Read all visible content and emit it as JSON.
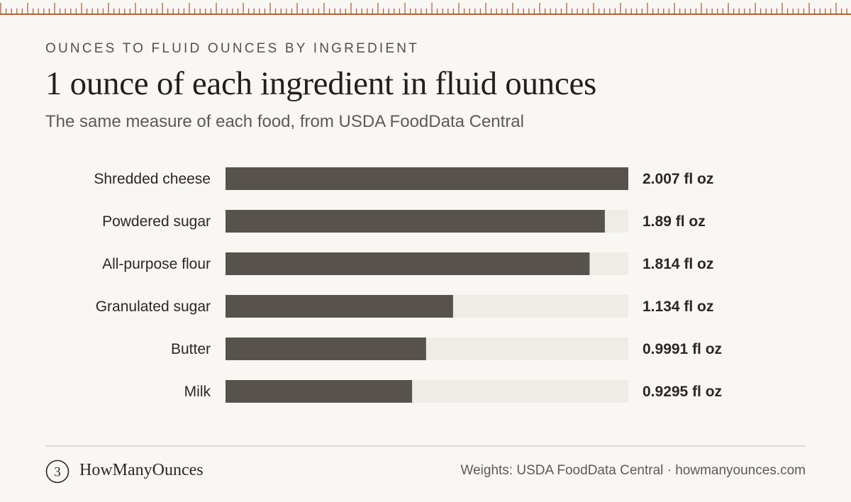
{
  "header": {
    "kicker": "OUNCES TO FLUID OUNCES BY INGREDIENT",
    "title": "1 ounce of each ingredient in fluid ounces",
    "subtitle": "The same measure of each food, from USDA FoodData Central"
  },
  "footer": {
    "brand": "HowManyOunces",
    "logo_glyph": "3",
    "credit": "Weights: USDA FoodData Central · howmanyounces.com"
  },
  "colors": {
    "background": "#f8f7f3",
    "bar": "#57524c",
    "track": "#efece5",
    "ruler": "#b5622f"
  },
  "chart_data": {
    "type": "bar",
    "orientation": "horizontal",
    "categories": [
      "Shredded cheese",
      "Powdered sugar",
      "All-purpose flour",
      "Granulated sugar",
      "Butter",
      "Milk"
    ],
    "values": [
      2.007,
      1.89,
      1.814,
      1.134,
      0.9991,
      0.9295
    ],
    "value_labels": [
      "2.007 fl oz",
      "1.89 fl oz",
      "1.814 fl oz",
      "1.134 fl oz",
      "0.9991 fl oz",
      "0.9295 fl oz"
    ],
    "unit": "fl oz",
    "xlim": [
      0,
      2.007
    ],
    "grid": false,
    "legend": "none"
  }
}
